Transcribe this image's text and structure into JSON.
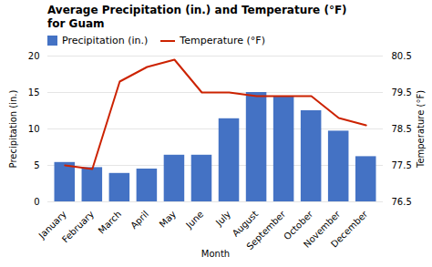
{
  "chart_data": {
    "type": "bar",
    "title": "Average Precipitation (in.) and Temperature (°F)",
    "subtitle": "for Guam",
    "categories": [
      "January",
      "February",
      "March",
      "April",
      "May",
      "June",
      "July",
      "August",
      "September",
      "October",
      "November",
      "December"
    ],
    "series": [
      {
        "name": "Precipitation (in.)",
        "type": "bar",
        "color": "#4472C4",
        "values": [
          5.4,
          4.7,
          3.9,
          4.5,
          6.4,
          6.4,
          11.4,
          15.0,
          14.5,
          12.5,
          9.7,
          6.2
        ]
      },
      {
        "name": "Temperature (°F)",
        "type": "line",
        "color": "#CC2200",
        "axis": "y2",
        "values": [
          77.5,
          77.4,
          79.8,
          80.2,
          80.4,
          79.5,
          79.5,
          79.4,
          79.4,
          79.4,
          78.8,
          78.6
        ]
      }
    ],
    "xlabel": "Month",
    "ylabel": "Precipitation (in.)",
    "y2label": "Temperature (°F)",
    "ylim": [
      0,
      20
    ],
    "yticks": [
      0,
      5,
      10,
      15,
      20
    ],
    "y2lim": [
      76.5,
      80.5
    ],
    "y2ticks": [
      76.5,
      77.5,
      78.5,
      79.5,
      80.5
    ],
    "grid": true,
    "legend": "top"
  }
}
